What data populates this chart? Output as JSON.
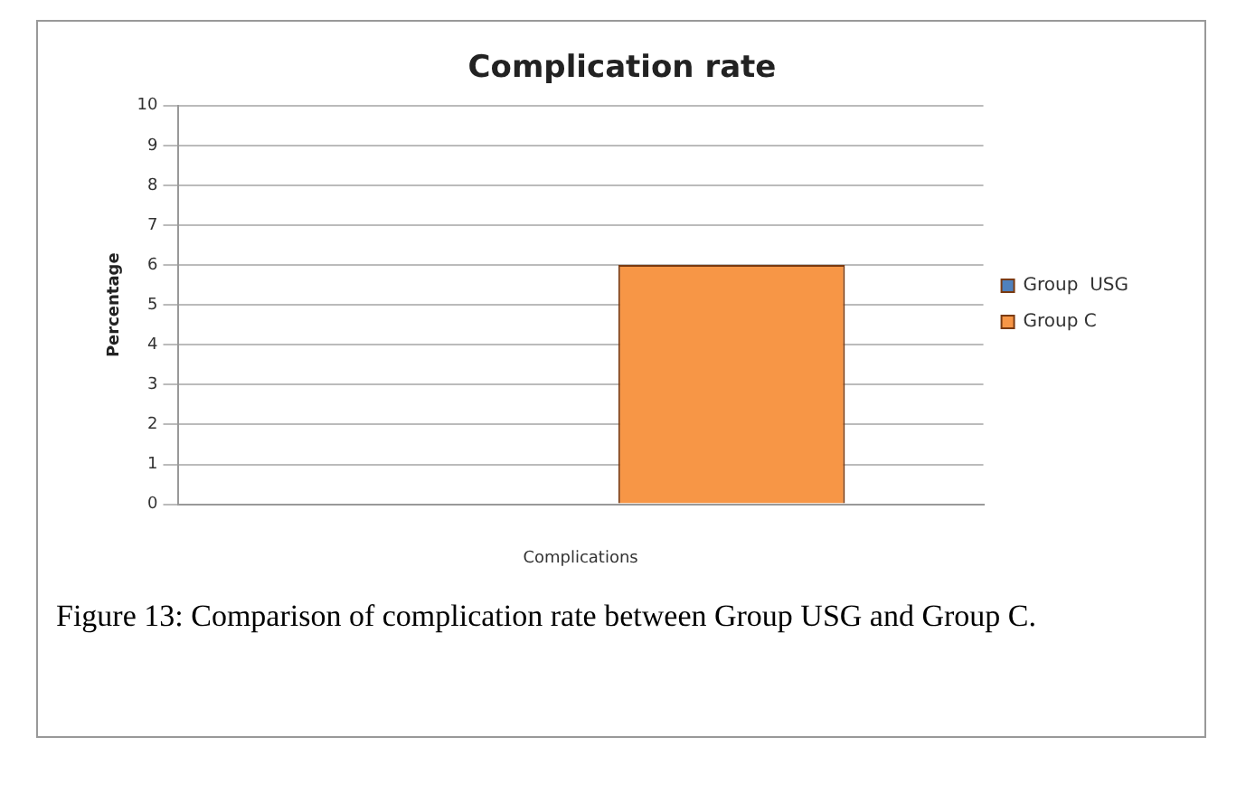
{
  "chart_data": {
    "type": "bar",
    "title": "Complication rate",
    "ylabel": "Percentage",
    "xlabel": "Complications",
    "categories": [
      null
    ],
    "series": [
      {
        "name": "Group  USG",
        "color": "#4f81bd",
        "values": [
          0
        ]
      },
      {
        "name": "Group C",
        "color": "#f79646",
        "values": [
          6
        ]
      }
    ],
    "ylim": [
      0,
      10
    ],
    "yticks": [
      0,
      1,
      2,
      3,
      4,
      5,
      6,
      7,
      8,
      9,
      10
    ],
    "grid": "y",
    "legend": "right",
    "annotations": [
      "Figure 13: Comparison of complication rate between Group USG and Group C."
    ]
  }
}
